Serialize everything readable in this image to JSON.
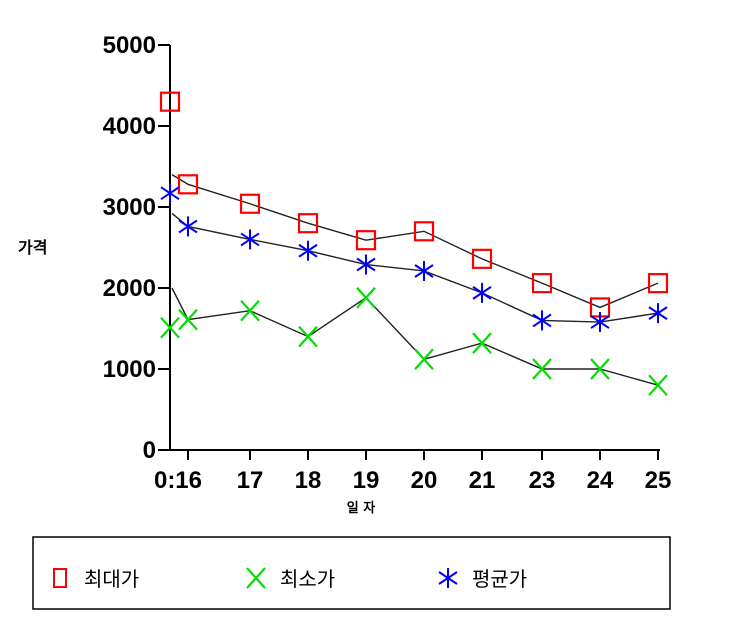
{
  "chart_data": {
    "type": "line",
    "title": "",
    "xlabel": "일 자",
    "ylabel": "가격",
    "categories": [
      "0:16",
      "17",
      "18",
      "19",
      "20",
      "21",
      "23",
      "24",
      "25"
    ],
    "ylim": [
      0,
      5000
    ],
    "yticks": [
      0,
      1000,
      2000,
      3000,
      4000,
      5000
    ],
    "grid": false,
    "legend_position": "bottom",
    "series": [
      {
        "name": "최대가",
        "marker": "square",
        "color": "#ff0000",
        "values": [
          3280,
          3040,
          2800,
          2590,
          2700,
          2360,
          2060,
          1760,
          2060
        ],
        "extra_point": 4300
      },
      {
        "name": "최소가",
        "marker": "x",
        "color": "#00dd00",
        "values": [
          1610,
          1720,
          1400,
          1880,
          1120,
          1320,
          1000,
          1000,
          800
        ],
        "extra_point": 1510
      },
      {
        "name": "평균가",
        "marker": "asterisk",
        "color": "#0000ff",
        "values": [
          2760,
          2600,
          2460,
          2290,
          2210,
          1940,
          1600,
          1580,
          1690
        ],
        "extra_point": 3170
      }
    ],
    "lead_in": [
      3400,
      2000,
      2920
    ]
  }
}
